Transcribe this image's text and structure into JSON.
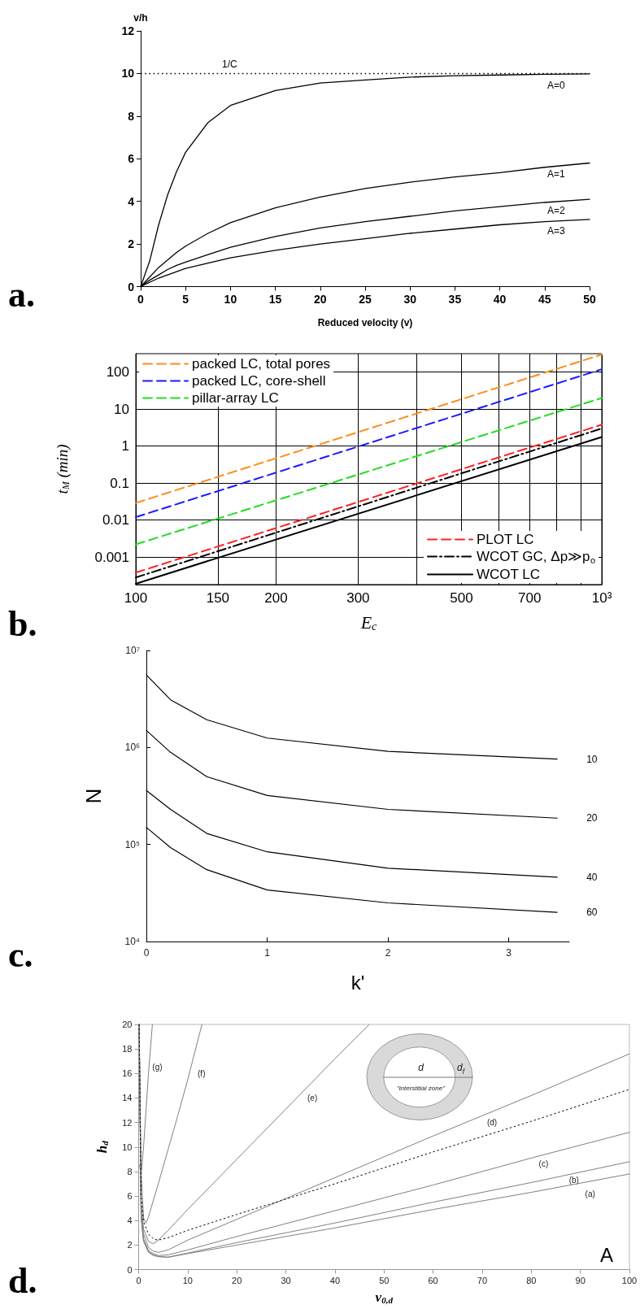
{
  "chart_data": [
    {
      "type": "line",
      "xlabel": "Reduced velocity (v)",
      "ylabel": "v/h",
      "x": [
        0,
        1,
        2,
        3,
        4,
        5,
        7.5,
        10,
        15,
        20,
        25,
        30,
        35,
        40,
        45,
        50
      ],
      "series": [
        {
          "name": "A=0",
          "color": "#000000",
          "values": [
            0,
            1.2,
            2.9,
            4.3,
            5.4,
            6.3,
            7.7,
            8.5,
            9.2,
            9.55,
            9.7,
            9.83,
            9.9,
            9.93,
            9.96,
            9.98
          ]
        },
        {
          "name": "A=1",
          "color": "#000000",
          "values": [
            0,
            0.45,
            0.9,
            1.25,
            1.6,
            1.9,
            2.5,
            3.0,
            3.7,
            4.2,
            4.6,
            4.9,
            5.15,
            5.35,
            5.6,
            5.8
          ]
        },
        {
          "name": "A=2",
          "color": "#000000",
          "values": [
            0,
            0.3,
            0.55,
            0.8,
            1.0,
            1.15,
            1.5,
            1.85,
            2.35,
            2.75,
            3.05,
            3.3,
            3.55,
            3.75,
            3.95,
            4.1
          ]
        },
        {
          "name": "A=3",
          "color": "#000000",
          "values": [
            0,
            0.2,
            0.4,
            0.55,
            0.7,
            0.85,
            1.1,
            1.35,
            1.7,
            2.0,
            2.25,
            2.5,
            2.7,
            2.9,
            3.05,
            3.15
          ]
        }
      ],
      "xlim": [
        0,
        50
      ],
      "xticks": [
        0,
        5,
        10,
        15,
        20,
        25,
        30,
        35,
        40,
        45,
        50
      ],
      "ylim": [
        0,
        12
      ],
      "yticks": [
        0,
        2,
        4,
        6,
        8,
        10,
        12
      ],
      "ref_lines": [
        {
          "axis": "y",
          "value": 10,
          "label": "1/C",
          "line_style": "dotted",
          "color": "#000000"
        }
      ],
      "annotations": [
        "a."
      ],
      "legend": false,
      "grid": false,
      "marker": "none",
      "line_style": "solid"
    },
    {
      "type": "line",
      "xlabel": "E$_{c}$",
      "ylabel": "t$_{M}$ (min)",
      "x": [
        100,
        1000
      ],
      "log": "xy",
      "series": [
        {
          "name": "packed LC, total pores",
          "color": "#ff8c1a",
          "line_style": "dashed",
          "values": [
            0.029,
            300
          ]
        },
        {
          "name": "packed LC, core-shell",
          "color": "#1a1aff",
          "line_style": "dashed",
          "values": [
            0.012,
            120
          ]
        },
        {
          "name": "pillar-array LC",
          "color": "#22dd22",
          "line_style": "dashed",
          "values": [
            0.0022,
            20
          ]
        },
        {
          "name": "PLOT LC",
          "color": "#ff2020",
          "line_style": "dashed",
          "values": [
            0.00038,
            3.8
          ]
        },
        {
          "name": "WCOT GC, Δp≫p$_{o}$",
          "color": "#000000",
          "line_style": "dashdot",
          "values": [
            0.00028,
            3.0
          ]
        },
        {
          "name": "WCOT LC",
          "color": "#000000",
          "line_style": "solid",
          "values": [
            0.00019,
            1.76
          ]
        }
      ],
      "xlim": [
        100,
        1000
      ],
      "xticks": [
        100,
        150,
        200,
        300,
        {
          "value": 400,
          "label": null
        },
        500,
        {
          "value": 600,
          "label": null
        },
        700,
        {
          "value": 800,
          "label": null
        },
        {
          "value": 900,
          "label": null
        },
        {
          "value": 1000,
          "label": "10³"
        }
      ],
      "ylim": [
        0.00018,
        316
      ],
      "yticks": [
        0.001,
        0.01,
        0.1,
        1,
        10,
        100
      ],
      "annotations": [
        "b."
      ],
      "legend": [
        "top left",
        "bottom right"
      ],
      "grid": true,
      "marker": "none"
    },
    {
      "type": "line",
      "xlabel": "k'",
      "ylabel": "N",
      "x": [
        0,
        0.2,
        0.5,
        1,
        2,
        3.4
      ],
      "log": "y",
      "series": [
        {
          "name": "10",
          "color": "#000000",
          "values": [
            5600000,
            3100000,
            1930000,
            1250000,
            910000,
            760000
          ]
        },
        {
          "name": "20",
          "color": "#000000",
          "values": [
            1500000,
            890000,
            500000,
            320000,
            230000,
            187000
          ]
        },
        {
          "name": "40",
          "color": "#000000",
          "values": [
            360000,
            230000,
            130000,
            84000,
            57000,
            46000
          ]
        },
        {
          "name": "60",
          "color": "#000000",
          "values": [
            150000,
            93000,
            55000,
            34000,
            25000,
            20000
          ]
        }
      ],
      "xlim": [
        0,
        3.5
      ],
      "xticks": [
        0,
        1,
        2,
        3
      ],
      "ylim": [
        10000,
        10000000
      ],
      "yticks": [
        {
          "value": 10000,
          "label": "10⁴"
        },
        {
          "value": 100000,
          "label": "10⁵"
        },
        {
          "value": 1000000,
          "label": "10⁶"
        },
        {
          "value": 10000000,
          "label": "10⁷"
        }
      ],
      "annotations": [
        "c."
      ],
      "legend": false,
      "grid": false,
      "marker": "none",
      "line_style": "solid"
    },
    {
      "type": "line",
      "xlabel": "ν$_{0,d}$",
      "ylabel": "h$_{d}$",
      "series": [
        {
          "color": "#808080",
          "x": [
            0.1,
            0.5,
            1,
            2,
            3,
            4,
            6,
            10,
            20,
            40,
            60,
            80,
            100
          ],
          "values": [
            20,
            4.2,
            2.3,
            1.4,
            1.15,
            1.05,
            1.0,
            1.3,
            2.0,
            3.4,
            4.9,
            6.3,
            7.8
          ]
        },
        {
          "color": "#808080",
          "x": [
            0.1,
            0.5,
            1,
            2,
            3,
            4,
            6,
            10,
            20,
            40,
            60,
            80,
            100
          ],
          "values": [
            20,
            4.3,
            2.4,
            1.45,
            1.2,
            1.08,
            1.02,
            1.35,
            2.2,
            3.8,
            5.5,
            7.1,
            8.8
          ]
        },
        {
          "color": "#808080",
          "x": [
            0.1,
            0.5,
            1,
            2,
            3,
            4,
            6,
            10,
            20,
            40,
            60,
            80,
            100
          ],
          "values": [
            20,
            4.4,
            2.5,
            1.55,
            1.3,
            1.15,
            1.2,
            1.6,
            2.7,
            4.8,
            6.9,
            9.1,
            11.2
          ]
        },
        {
          "color": "#808080",
          "x": [
            0.1,
            0.5,
            1,
            2,
            3,
            4,
            6,
            10,
            20,
            40,
            60,
            80,
            100
          ],
          "values": [
            20,
            4.8,
            2.9,
            1.8,
            1.5,
            1.4,
            1.6,
            2.4,
            4.1,
            7.5,
            10.9,
            14.2,
            17.6
          ]
        },
        {
          "color": "#808080",
          "x": [
            0.1,
            0.5,
            1,
            2,
            3,
            4,
            6,
            10,
            20,
            30,
            40,
            47
          ],
          "values": [
            20,
            5.5,
            3.3,
            2.3,
            2.1,
            2.4,
            3.2,
            4.9,
            9.0,
            13.1,
            17.2,
            20
          ]
        },
        {
          "color": "#808080",
          "x": [
            0.1,
            0.5,
            1,
            1.5,
            2,
            4,
            6,
            8,
            10,
            12.9
          ],
          "values": [
            20,
            8,
            4.2,
            3.8,
            4.3,
            7.0,
            9.8,
            12.6,
            15.5,
            20
          ]
        },
        {
          "color": "#808080",
          "x": [
            0.2,
            0.5,
            1,
            1.5,
            2,
            2.8
          ],
          "values": [
            8.5,
            7.7,
            10,
            13,
            16,
            20
          ]
        },
        {
          "color": "#000000",
          "line_style": "dotted",
          "x": [
            0.1,
            0.5,
            1,
            2,
            3,
            4,
            6,
            10,
            20,
            40,
            60,
            80,
            100
          ],
          "values": [
            20,
            6,
            3.9,
            2.9,
            2.5,
            2.4,
            2.6,
            3.2,
            4.5,
            7.0,
            9.6,
            12.1,
            14.7
          ]
        }
      ],
      "xlim": [
        0,
        100
      ],
      "xticks": [
        0,
        10,
        20,
        30,
        40,
        50,
        60,
        70,
        80,
        90,
        100
      ],
      "ylim": [
        0,
        20
      ],
      "yticks": [
        0,
        2,
        4,
        6,
        8,
        10,
        12,
        14,
        16,
        18,
        20
      ],
      "annotations": [
        "d.",
        "A",
        "d",
        "d$_{f}$",
        "\"interstitial zone\"",
        "(a)",
        "(b)",
        "(c)",
        "(d)",
        "(e)",
        "(f)",
        "(g)"
      ],
      "legend": false,
      "grid": false,
      "marker": "none",
      "line_style": "solid"
    }
  ]
}
